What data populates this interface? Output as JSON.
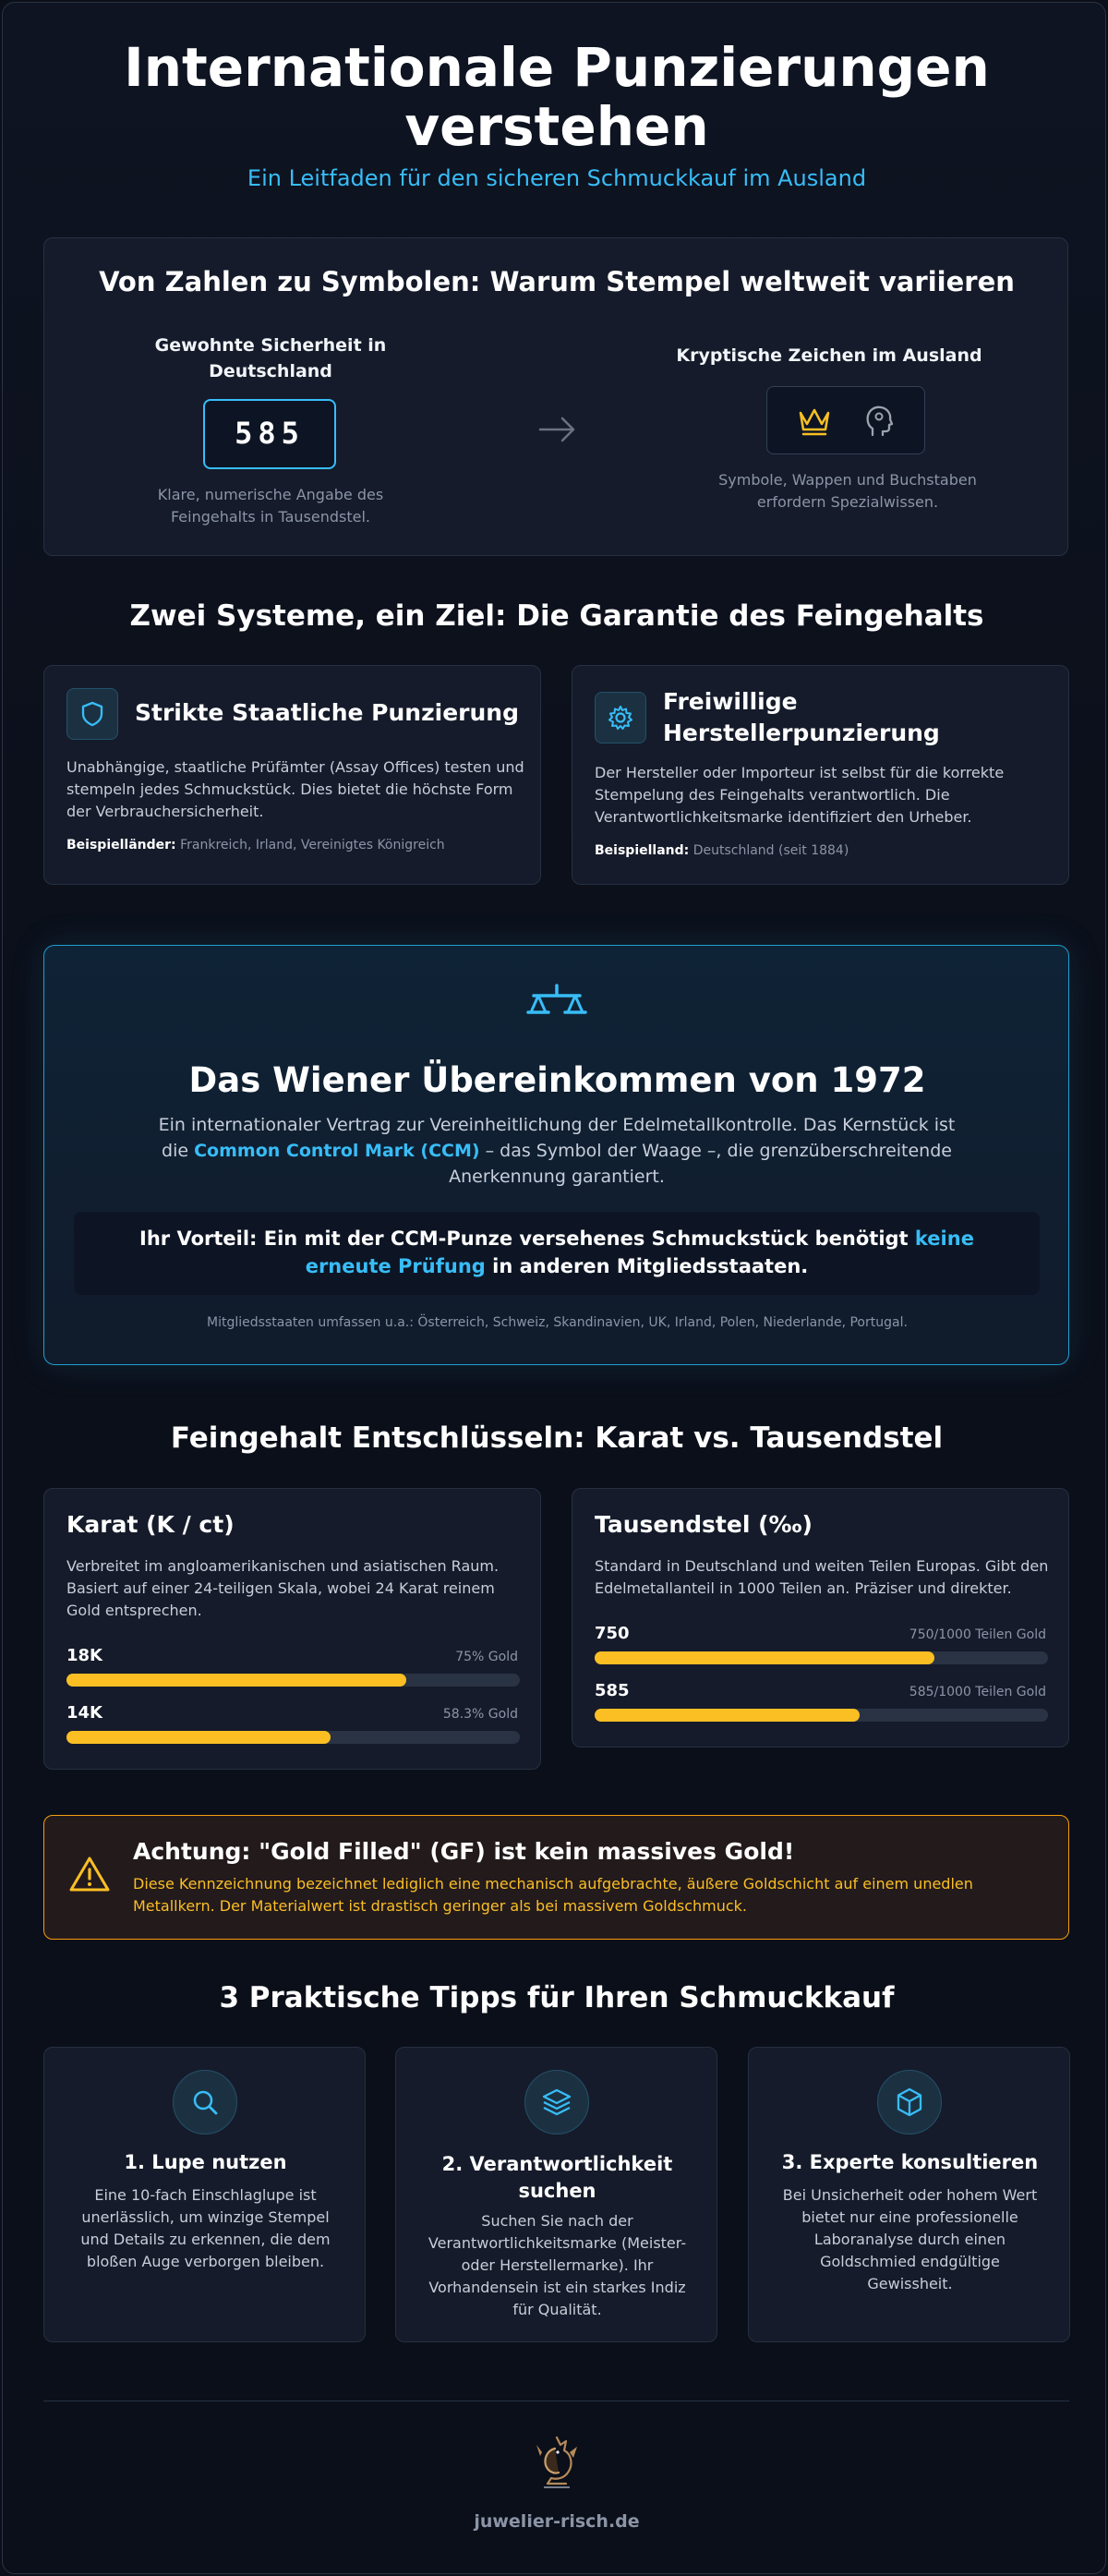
{
  "header": {
    "title": "Internationale Punzierungen verstehen",
    "subtitle": "Ein Leitfaden für den sicheren Schmuckkauf im Ausland"
  },
  "comparison": {
    "heading": "Von Zahlen zu Symbolen: Warum Stempel weltweit variieren",
    "left_title": "Gewohnte Sicherheit in Deutschland",
    "left_stamp": "585",
    "left_caption": "Klare, numerische Angabe des Feingehalts in Tausendstel.",
    "right_title": "Kryptische Zeichen im Ausland",
    "right_caption": "Symbole, Wappen und Buchstaben erfordern Spezialwissen.",
    "arrow_icon": "arrow-right-icon",
    "symbol_icons": [
      "crown-icon",
      "head-profile-icon"
    ]
  },
  "systems": {
    "heading": "Zwei Systeme, ein Ziel: Die Garantie des Feingehalts",
    "state": {
      "icon": "shield-icon",
      "title": "Strikte Staatliche Punzierung",
      "text": "Unabhängige, staatliche Prüfämter (Assay Offices) testen und stempeln jedes Schmuckstück. Dies bietet die höchste Form der Verbrauchersicherheit.",
      "example_label": "Beispielländer:",
      "example_value": "Frankreich, Irland, Vereinigtes Königreich"
    },
    "voluntary": {
      "icon": "gear-icon",
      "title": "Freiwillige Herstellerpunzierung",
      "text": "Der Hersteller oder Importeur ist selbst für die korrekte Stempelung des Feingehalts verantwortlich. Die Verantwortlichkeitsmarke identifiziert den Urheber.",
      "example_label": "Beispielland:",
      "example_value": "Deutschland (seit 1884)"
    }
  },
  "vienna": {
    "icon": "scale-icon",
    "heading": "Das Wiener Übereinkommen von 1972",
    "text_before": "Ein internationaler Vertrag zur Vereinheitlichung der Edelmetallkontrolle. Das Kernstück ist die",
    "text_highlight": "Common Control Mark (CCM)",
    "text_after": "– das Symbol der Waage –, die grenzüberschreitende Anerkennung garantiert.",
    "benefit_before": "Ihr Vorteil: Ein mit der CCM-Punze versehenes Schmuckstück benötigt",
    "benefit_highlight": "keine erneute Prüfung",
    "benefit_after": "in anderen Mitgliedsstaaten.",
    "members": "Mitgliedsstaaten umfassen u.a.: Österreich, Schweiz, Skandinavien, UK, Irland, Polen, Niederlande, Portugal."
  },
  "fineness": {
    "heading": "Feingehalt Entschlüsseln: Karat vs. Tausendstel",
    "karat": {
      "title": "Karat (K / ct)",
      "text": "Verbreitet im angloamerikanischen und asiatischen Raum. Basiert auf einer 24-teiligen Skala, wobei 24 Karat reinem Gold entsprechen.",
      "bars": [
        {
          "label": "18K",
          "note": "75% Gold",
          "fraction": 0.75
        },
        {
          "label": "14K",
          "note": "58.3% Gold",
          "fraction": 0.583
        }
      ]
    },
    "permille": {
      "title": "Tausendstel (‰)",
      "text": "Standard in Deutschland und weiten Teilen Europas. Gibt den Edelmetallanteil in 1000 Teilen an. Präziser und direkter.",
      "bars": [
        {
          "label": "750",
          "note": "750/1000 Teilen Gold",
          "fraction": 0.75
        },
        {
          "label": "585",
          "note": "585/1000 Teilen Gold",
          "fraction": 0.585
        }
      ]
    }
  },
  "warning": {
    "icon": "warning-triangle-icon",
    "title": "Achtung: \"Gold Filled\" (GF) ist kein massives Gold!",
    "text": "Diese Kennzeichnung bezeichnet lediglich eine mechanisch aufgebrachte, äußere Goldschicht auf einem unedlen Metallkern. Der Materialwert ist drastisch geringer als bei massivem Goldschmuck."
  },
  "tips": {
    "heading": "3 Praktische Tipps für Ihren Schmuckkauf",
    "items": [
      {
        "icon": "magnifier-icon",
        "title": "1. Lupe nutzen",
        "text": "Eine 10-fach Einschlaglupe ist unerlässlich, um winzige Stempel und Details zu erkennen, die dem bloßen Auge verborgen bleiben."
      },
      {
        "icon": "layers-icon",
        "title": "2. Verantwortlichkeit suchen",
        "text": "Suchen Sie nach der Verantwortlichkeitsmarke (Meister- oder Herstellermarke). Ihr Vorhandensein ist ein starkes Indiz für Qualität."
      },
      {
        "icon": "box-icon",
        "title": "3. Experte konsultieren",
        "text": "Bei Unsicherheit oder hohem Wert bietet nur eine professionelle Laboranalyse durch einen Goldschmied endgültige Gewissheit."
      }
    ]
  },
  "footer": {
    "logo_icon": "dragon-logo-icon",
    "site": "juwelier-risch.de"
  },
  "colors": {
    "accent": "#38bdf8",
    "gold": "#fbbf24",
    "warning_border": "#f59e0b",
    "background": "#0b0f19"
  }
}
